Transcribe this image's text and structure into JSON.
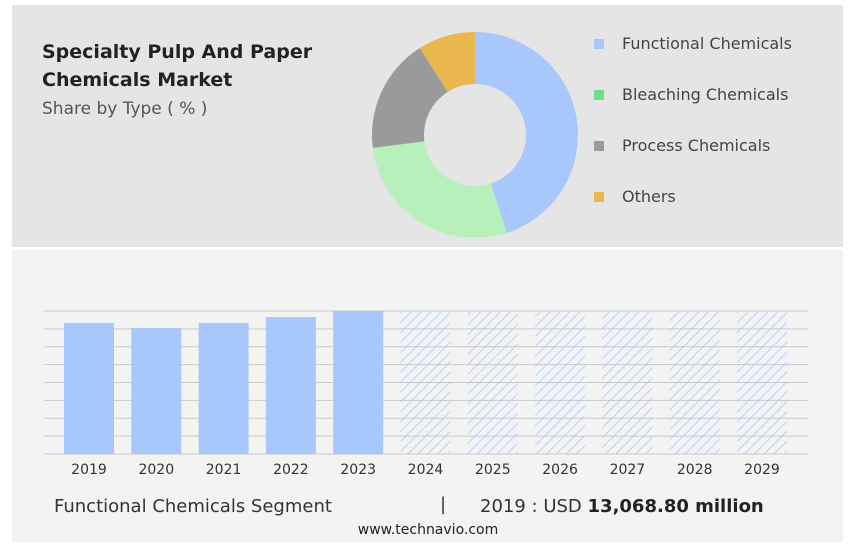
{
  "header": {
    "title": "Specialty Pulp And Paper Chemicals Market",
    "subtitle": "Share by Type ( % )"
  },
  "chart_data": [
    {
      "type": "pie",
      "variant": "donut",
      "title": "Share by Type ( % )",
      "labels": [
        "Functional Chemicals",
        "Bleaching Chemicals",
        "Process Chemicals",
        "Others"
      ],
      "values": [
        45,
        28,
        18,
        9
      ],
      "colors": [
        "#a8c8fb",
        "#b8f0bc",
        "#9a9a9a",
        "#e8b84f"
      ],
      "legend_colors": [
        "#a8c8fb",
        "#6ee08a",
        "#9a9a9a",
        "#e8b84f"
      ],
      "legend": "right"
    },
    {
      "type": "bar",
      "categories": [
        "2019",
        "2020",
        "2021",
        "2022",
        "2023",
        "2024",
        "2025",
        "2026",
        "2027",
        "2028",
        "2029"
      ],
      "values": [
        13068.8,
        12570,
        13070,
        13670,
        14270,
        null,
        null,
        null,
        null,
        null,
        null
      ],
      "forecast": [
        false,
        false,
        false,
        false,
        false,
        true,
        true,
        true,
        true,
        true,
        true
      ],
      "ylim": [
        0,
        14270
      ],
      "grid": true,
      "color": "#a8c8fb",
      "xlabel": "",
      "ylabel": ""
    }
  ],
  "footer": {
    "segment": "Functional Chemicals Segment",
    "separator": "|",
    "year_label": "2019 : USD",
    "value": "13,068.80 million",
    "site": "www.technavio.com"
  }
}
